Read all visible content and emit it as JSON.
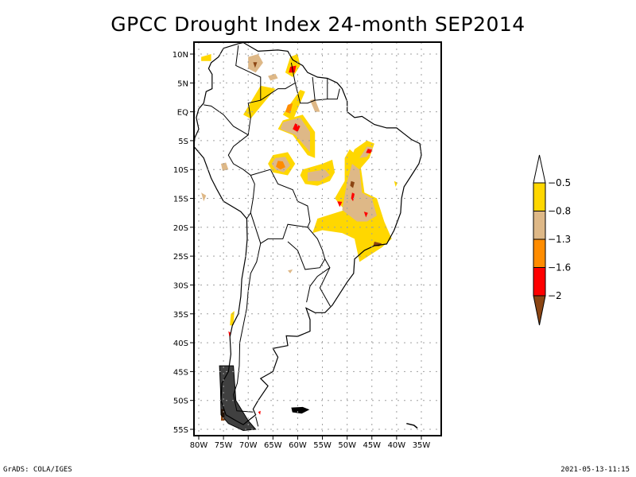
{
  "chart_data": {
    "type": "heatmap",
    "title": "GPCC Drought Index 24-month SEP2014",
    "xlabel": "",
    "ylabel": "",
    "lon_range": [
      -81,
      -32
    ],
    "lat_range": [
      -56,
      12
    ],
    "grid": true,
    "x_ticks": [
      {
        "value": -80,
        "label": "80W"
      },
      {
        "value": -75,
        "label": "75W"
      },
      {
        "value": -70,
        "label": "70W"
      },
      {
        "value": -65,
        "label": "65W"
      },
      {
        "value": -60,
        "label": "60W"
      },
      {
        "value": -55,
        "label": "55W"
      },
      {
        "value": -50,
        "label": "50W"
      },
      {
        "value": -45,
        "label": "45W"
      },
      {
        "value": -40,
        "label": "40W"
      },
      {
        "value": -35,
        "label": "35W"
      }
    ],
    "y_ticks": [
      {
        "value": 10,
        "label": "10N"
      },
      {
        "value": 5,
        "label": "5N"
      },
      {
        "value": 0,
        "label": "EQ"
      },
      {
        "value": -5,
        "label": "5S"
      },
      {
        "value": -10,
        "label": "10S"
      },
      {
        "value": -15,
        "label": "15S"
      },
      {
        "value": -20,
        "label": "20S"
      },
      {
        "value": -25,
        "label": "25S"
      },
      {
        "value": -30,
        "label": "30S"
      },
      {
        "value": -35,
        "label": "35S"
      },
      {
        "value": -40,
        "label": "40S"
      },
      {
        "value": -45,
        "label": "45S"
      },
      {
        "value": -50,
        "label": "50S"
      },
      {
        "value": -55,
        "label": "55S"
      }
    ],
    "colorbar": {
      "placement": "right",
      "levels": [
        "-0.5",
        "-0.8",
        "-1.3",
        "-1.6",
        "-2"
      ],
      "colors": [
        "#ffffff",
        "#ffd700",
        "#deb887",
        "#ff8c00",
        "#ff0000",
        "#8b4513"
      ],
      "bins": [
        {
          "range": "> -0.5",
          "color": "#ffffff"
        },
        {
          "range": "-0.8 to -0.5",
          "color": "#ffd700"
        },
        {
          "range": "-1.3 to -0.8",
          "color": "#deb887"
        },
        {
          "range": "-1.6 to -1.3",
          "color": "#ff8c00"
        },
        {
          "range": "-2 to -1.6",
          "color": "#ff0000"
        },
        {
          "range": "< -2",
          "color": "#8b4513"
        }
      ]
    },
    "regions": [
      {
        "name": "caribbean-colombia",
        "level": 1,
        "points": [
          [
            -79.5,
            9.5
          ],
          [
            -77.5,
            10
          ],
          [
            -77.5,
            8.8
          ],
          [
            -79.5,
            8.8
          ]
        ]
      },
      {
        "name": "venezuela-west",
        "level": 2,
        "points": [
          [
            -70,
            9.5
          ],
          [
            -68,
            10
          ],
          [
            -67,
            8.5
          ],
          [
            -68.5,
            6.8
          ],
          [
            -70,
            7.5
          ]
        ]
      },
      {
        "name": "venezuela-west-core",
        "level": 5,
        "points": [
          [
            -69,
            8.6
          ],
          [
            -68.2,
            8.6
          ],
          [
            -68.6,
            7.6
          ]
        ]
      },
      {
        "name": "venezuela-central",
        "level": 2,
        "points": [
          [
            -66,
            6.2
          ],
          [
            -64.5,
            6.6
          ],
          [
            -64,
            5.8
          ],
          [
            -65.5,
            5.4
          ]
        ]
      },
      {
        "name": "venezuela-east",
        "level": 1,
        "points": [
          [
            -61.5,
            9.5
          ],
          [
            -60,
            10
          ],
          [
            -59.5,
            8
          ],
          [
            -61,
            6
          ],
          [
            -62.5,
            6.8
          ]
        ]
      },
      {
        "name": "venezuela-east-core",
        "level": 4,
        "points": [
          [
            -61.5,
            7.8
          ],
          [
            -60.3,
            8
          ],
          [
            -60.6,
            6.8
          ],
          [
            -61.8,
            6.8
          ]
        ]
      },
      {
        "name": "colombia-strip",
        "level": 1,
        "points": [
          [
            -67.5,
            4.5
          ],
          [
            -64.5,
            4
          ],
          [
            -69.5,
            -1.2
          ],
          [
            -71,
            -0.5
          ]
        ]
      },
      {
        "name": "roraima",
        "level": 1,
        "points": [
          [
            -59.5,
            3.8
          ],
          [
            -58.5,
            3.5
          ],
          [
            -61,
            -1.5
          ],
          [
            -63,
            -0.5
          ]
        ]
      },
      {
        "name": "roraima-core",
        "level": 3,
        "points": [
          [
            -62,
            1.2
          ],
          [
            -61,
            1.5
          ],
          [
            -61.5,
            -0.3
          ],
          [
            -62.5,
            0
          ]
        ]
      },
      {
        "name": "guyana-south",
        "level": 2,
        "points": [
          [
            -57.5,
            2
          ],
          [
            -56.5,
            2.2
          ],
          [
            -55.5,
            0
          ],
          [
            -56.5,
            0
          ]
        ]
      },
      {
        "name": "amazonas-north",
        "level": 1,
        "points": [
          [
            -63,
            -1.5
          ],
          [
            -59,
            -0.5
          ],
          [
            -56.5,
            -3.5
          ],
          [
            -56.5,
            -8
          ],
          [
            -58,
            -7.5
          ],
          [
            -61,
            -4
          ],
          [
            -64,
            -3
          ]
        ]
      },
      {
        "name": "amazonas-north-mid",
        "level": 2,
        "points": [
          [
            -63,
            -1.8
          ],
          [
            -59.5,
            -1
          ],
          [
            -57.5,
            -3.5
          ],
          [
            -57.5,
            -7
          ],
          [
            -60.5,
            -4
          ],
          [
            -63.5,
            -3
          ]
        ]
      },
      {
        "name": "amazonas-north-core",
        "level": 4,
        "points": [
          [
            -60.5,
            -2
          ],
          [
            -59.5,
            -2.5
          ],
          [
            -60,
            -3.5
          ],
          [
            -61,
            -3
          ]
        ]
      },
      {
        "name": "maranhao",
        "level": 1,
        "points": [
          [
            -46,
            -5
          ],
          [
            -44.5,
            -5.5
          ],
          [
            -45.5,
            -8
          ],
          [
            -48,
            -10.5
          ],
          [
            -50,
            -9.5
          ],
          [
            -48.5,
            -6.5
          ]
        ]
      },
      {
        "name": "maranhao-mid",
        "level": 2,
        "points": [
          [
            -46,
            -6
          ],
          [
            -44.8,
            -6.2
          ],
          [
            -46,
            -7.8
          ],
          [
            -47.5,
            -8
          ]
        ]
      },
      {
        "name": "maranhao-core",
        "level": 4,
        "points": [
          [
            -45.8,
            -6.4
          ],
          [
            -44.9,
            -6.6
          ],
          [
            -45.3,
            -7.2
          ],
          [
            -46.2,
            -7.1
          ]
        ]
      },
      {
        "name": "rondonia",
        "level": 1,
        "points": [
          [
            -65,
            -7.5
          ],
          [
            -62,
            -7
          ],
          [
            -60.5,
            -9
          ],
          [
            -62,
            -11
          ],
          [
            -65,
            -10.5
          ],
          [
            -66,
            -9
          ]
        ]
      },
      {
        "name": "rondonia-mid",
        "level": 2,
        "points": [
          [
            -64.5,
            -8
          ],
          [
            -62.5,
            -7.8
          ],
          [
            -61.5,
            -9.3
          ],
          [
            -62.8,
            -10.5
          ],
          [
            -64.5,
            -10
          ],
          [
            -65.3,
            -9
          ]
        ]
      },
      {
        "name": "rondonia-core",
        "level": 3,
        "points": [
          [
            -64,
            -8.5
          ],
          [
            -63,
            -8.6
          ],
          [
            -62.5,
            -9.6
          ],
          [
            -63.5,
            -10
          ],
          [
            -64.4,
            -9.5
          ]
        ]
      },
      {
        "name": "bolivia-north",
        "level": 2,
        "points": [
          [
            -75.5,
            -9
          ],
          [
            -74.5,
            -8.8
          ],
          [
            -74,
            -10
          ],
          [
            -75.2,
            -10.2
          ]
        ]
      },
      {
        "name": "mato-grosso",
        "level": 1,
        "points": [
          [
            -59,
            -10
          ],
          [
            -55,
            -9
          ],
          [
            -53,
            -8.3
          ],
          [
            -52.5,
            -10.5
          ],
          [
            -53.5,
            -12
          ],
          [
            -56,
            -12.8
          ],
          [
            -58.5,
            -12.5
          ],
          [
            -59.5,
            -11
          ]
        ]
      },
      {
        "name": "mato-grosso-mid",
        "level": 2,
        "points": [
          [
            -58,
            -10.5
          ],
          [
            -54.5,
            -10
          ],
          [
            -53.5,
            -11
          ],
          [
            -55.5,
            -12
          ],
          [
            -58,
            -12
          ]
        ]
      },
      {
        "name": "tocantins-goias",
        "level": 1,
        "points": [
          [
            -49.5,
            -6.5
          ],
          [
            -47.5,
            -8
          ],
          [
            -46.5,
            -14
          ],
          [
            -44,
            -15
          ],
          [
            -42.5,
            -19
          ],
          [
            -41,
            -22
          ],
          [
            -43,
            -23.5
          ],
          [
            -47.5,
            -26
          ],
          [
            -48.5,
            -22
          ],
          [
            -51,
            -21
          ],
          [
            -55,
            -20.5
          ],
          [
            -57,
            -21
          ],
          [
            -56,
            -18.5
          ],
          [
            -50.5,
            -17
          ],
          [
            -52.5,
            -15
          ],
          [
            -50.5,
            -12
          ],
          [
            -50.5,
            -8
          ]
        ]
      },
      {
        "name": "goias-mid",
        "level": 2,
        "points": [
          [
            -49,
            -9
          ],
          [
            -47.5,
            -10
          ],
          [
            -47,
            -14
          ],
          [
            -45,
            -15
          ],
          [
            -44,
            -18
          ],
          [
            -46,
            -19
          ],
          [
            -48,
            -19
          ],
          [
            -51,
            -17
          ],
          [
            -50,
            -12
          ]
        ]
      },
      {
        "name": "goias-core-1",
        "level": 5,
        "points": [
          [
            -49.2,
            -12
          ],
          [
            -48.5,
            -12.2
          ],
          [
            -48.8,
            -13.2
          ],
          [
            -49.4,
            -12.8
          ]
        ]
      },
      {
        "name": "goias-core-2",
        "level": 4,
        "points": [
          [
            -49,
            -14
          ],
          [
            -48.5,
            -14.2
          ],
          [
            -48.8,
            -15.5
          ],
          [
            -49.2,
            -15
          ]
        ]
      },
      {
        "name": "goias-core-3",
        "level": 4,
        "points": [
          [
            -52,
            -15.5
          ],
          [
            -51,
            -15.6
          ],
          [
            -51.5,
            -16.5
          ]
        ]
      },
      {
        "name": "minas-core",
        "level": 4,
        "points": [
          [
            -46.6,
            -17.3
          ],
          [
            -45.8,
            -17.5
          ],
          [
            -46.2,
            -18.3
          ]
        ]
      },
      {
        "name": "rio-core",
        "level": 5,
        "points": [
          [
            -44.5,
            -22.5
          ],
          [
            -43,
            -22.8
          ],
          [
            -43.5,
            -23.3
          ],
          [
            -44.7,
            -23.2
          ]
        ]
      },
      {
        "name": "espirito-santo",
        "level": 1,
        "points": [
          [
            -40.5,
            -12
          ],
          [
            -39.8,
            -12.3
          ],
          [
            -40.2,
            -13
          ]
        ]
      },
      {
        "name": "paraguay-coast",
        "level": 2,
        "points": [
          [
            -79.5,
            -14
          ],
          [
            -78.5,
            -14.5
          ],
          [
            -79,
            -15.5
          ]
        ]
      },
      {
        "name": "argentina-north",
        "level": 2,
        "points": [
          [
            -62,
            -27.5
          ],
          [
            -61,
            -27.3
          ],
          [
            -61.5,
            -28
          ]
        ]
      },
      {
        "name": "chile-central",
        "level": 1,
        "points": [
          [
            -73.5,
            -35
          ],
          [
            -72.8,
            -34.5
          ],
          [
            -73,
            -37
          ],
          [
            -73.7,
            -37
          ]
        ]
      },
      {
        "name": "chile-central-core",
        "level": 4,
        "points": [
          [
            -74,
            -38
          ],
          [
            -73.5,
            -38.3
          ],
          [
            -73.8,
            -39
          ]
        ]
      },
      {
        "name": "patagonia-south",
        "level": 5,
        "points": [
          [
            -75.5,
            -51.5
          ],
          [
            -74.8,
            -51.5
          ],
          [
            -74.8,
            -53.5
          ],
          [
            -75.5,
            -53.5
          ]
        ]
      },
      {
        "name": "patagonia-east",
        "level": 4,
        "points": [
          [
            -68,
            -52
          ],
          [
            -67.5,
            -51.8
          ],
          [
            -67.6,
            -52.5
          ]
        ]
      }
    ]
  },
  "footer": {
    "left": "GrADS: COLA/IGES",
    "right": "2021-05-13-11:15"
  }
}
